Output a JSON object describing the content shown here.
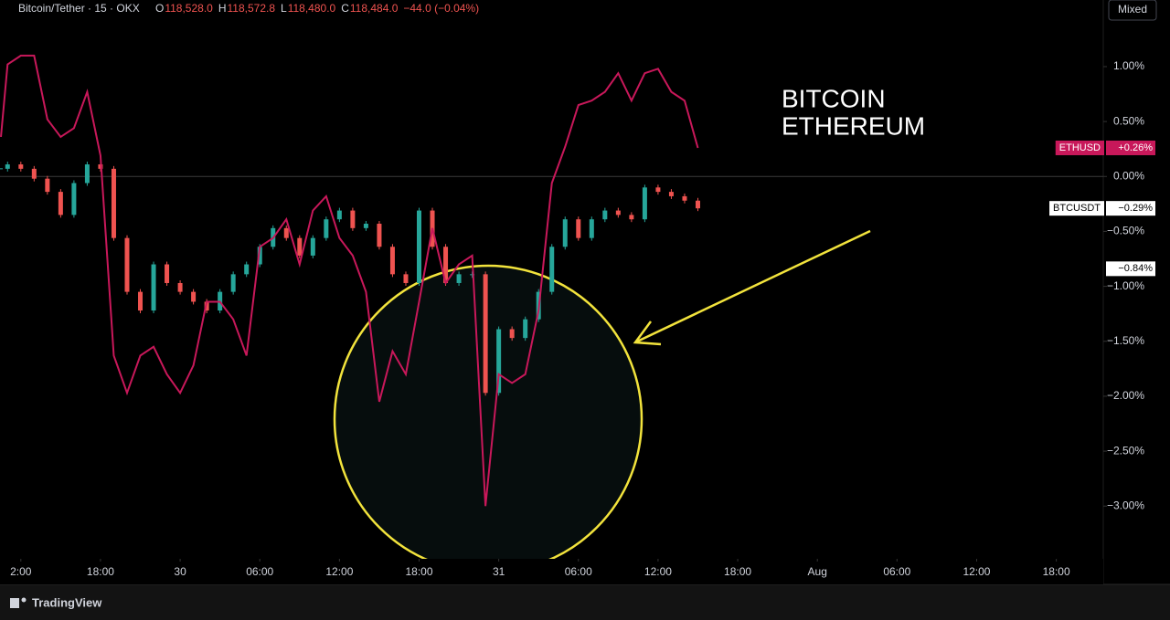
{
  "chart_data": {
    "type": "compare",
    "header": {
      "symbol": "Bitcoin/Tether · 15 · OKX",
      "ohlc": [
        {
          "key": "O",
          "value": "118,528.0"
        },
        {
          "key": "H",
          "value": "118,572.8"
        },
        {
          "key": "L",
          "value": "118,480.0"
        },
        {
          "key": "C",
          "value": "118,484.0"
        }
      ],
      "change": "−44.0 (−0.04%)"
    },
    "scale_button": "Mixed",
    "annotation": [
      "BITCOIN",
      "ETHEREUM"
    ],
    "brand": "TradingView",
    "x": [
      -1.5,
      -1,
      0,
      1,
      2,
      3,
      4,
      5,
      6,
      7,
      8,
      9,
      10,
      11,
      12,
      13,
      14,
      15,
      16,
      17,
      18,
      19,
      20,
      21,
      22,
      23,
      24,
      25,
      26,
      27,
      28,
      29,
      30,
      31,
      32,
      33,
      34,
      35,
      36,
      37,
      38,
      39,
      40,
      41,
      42,
      43,
      44,
      45,
      46,
      47,
      48,
      49,
      50,
      51
    ],
    "series": [
      {
        "name": "ETHUSD",
        "style": "line",
        "color": "#c8185a",
        "last_label": "+0.26%",
        "values": [
          0.36,
          1.02,
          1.1,
          1.1,
          0.52,
          0.36,
          0.44,
          0.77,
          0.19,
          -1.63,
          -1.97,
          -1.63,
          -1.55,
          -1.8,
          -1.97,
          -1.72,
          -1.14,
          -1.14,
          -1.3,
          -1.63,
          -0.64,
          -0.56,
          -0.39,
          -0.8,
          -0.31,
          -0.18,
          -0.56,
          -0.72,
          -1.05,
          -2.05,
          -1.59,
          -1.8,
          -1.14,
          -0.47,
          -0.97,
          -0.8,
          -0.72,
          -3.0,
          -1.8,
          -1.88,
          -1.8,
          -1.22,
          -0.06,
          0.27,
          0.65,
          0.69,
          0.77,
          0.94,
          0.69,
          0.94,
          0.98,
          0.77,
          0.69,
          0.26
        ]
      },
      {
        "name": "BTCUSDT",
        "style": "candles",
        "up_color": "#26a69a",
        "down_color": "#ef5350",
        "last_label": "−0.29%",
        "values": [
          0.07,
          0.11,
          0.07,
          -0.02,
          -0.14,
          -0.35,
          -0.06,
          0.11,
          0.07,
          -0.56,
          -1.05,
          -1.22,
          -0.8,
          -0.97,
          -1.05,
          -1.14,
          -1.22,
          -1.05,
          -0.89,
          -0.8,
          -0.64,
          -0.47,
          -0.56,
          -0.72,
          -0.56,
          -0.39,
          -0.31,
          -0.47,
          -0.43,
          -0.64,
          -0.89,
          -0.97,
          -0.31,
          -0.64,
          -0.97,
          -0.89,
          -0.89,
          -1.97,
          -1.39,
          -1.47,
          -1.3,
          -1.05,
          -0.64,
          -0.39,
          -0.56,
          -0.39,
          -0.31,
          -0.35,
          -0.39,
          -0.1,
          -0.14,
          -0.18,
          -0.22,
          -0.29
        ]
      }
    ],
    "price_marker": {
      "value": -0.84,
      "label": "−0.84%"
    },
    "xlim": [
      -1.57,
      81.4
    ],
    "xticks": [
      {
        "value": 0,
        "label": "2:00"
      },
      {
        "value": 6,
        "label": "18:00"
      },
      {
        "value": 12,
        "label": "30"
      },
      {
        "value": 18,
        "label": "06:00"
      },
      {
        "value": 24,
        "label": "12:00"
      },
      {
        "value": 30,
        "label": "18:00"
      },
      {
        "value": 36,
        "label": "31"
      },
      {
        "value": 42,
        "label": "06:00"
      },
      {
        "value": 48,
        "label": "12:00"
      },
      {
        "value": 54,
        "label": "18:00"
      },
      {
        "value": 60,
        "label": "Aug"
      },
      {
        "value": 66,
        "label": "06:00"
      },
      {
        "value": 72,
        "label": "12:00"
      },
      {
        "value": 78,
        "label": "18:00"
      }
    ],
    "ylim": [
      -3.48,
      1.44
    ],
    "yticks": [
      {
        "value": 1,
        "label": "1.00%"
      },
      {
        "value": 0.5,
        "label": "0.50%"
      },
      {
        "value": 0,
        "label": "0.00%"
      },
      {
        "value": -0.5,
        "label": "−0.50%"
      },
      {
        "value": -1,
        "label": "−1.00%"
      },
      {
        "value": -1.5,
        "label": "−1.50%"
      },
      {
        "value": -2,
        "label": "−2.00%"
      },
      {
        "value": -2.5,
        "label": "−2.50%"
      },
      {
        "value": -3,
        "label": "−3.00%"
      }
    ],
    "zero_line": 0
  }
}
